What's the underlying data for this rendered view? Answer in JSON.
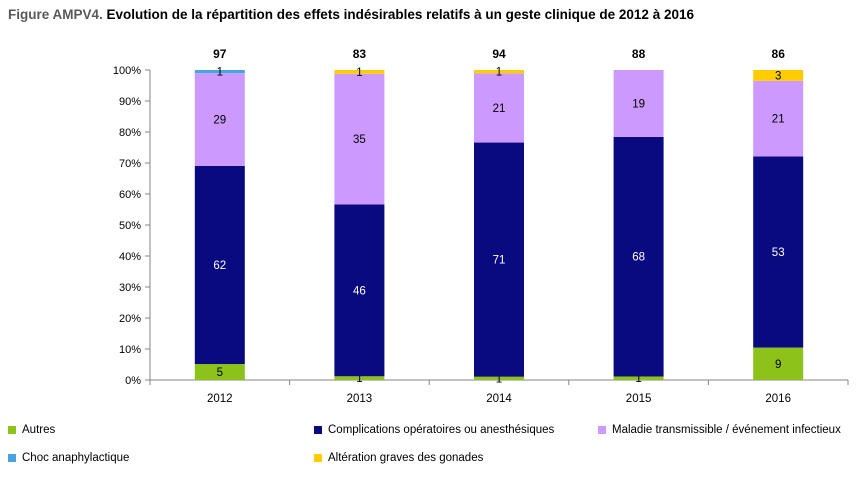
{
  "figure": {
    "prefix": "Figure AMPV4.",
    "title": "Evolution de la répartition des effets indésirables relatifs à un geste clinique de 2012 à 2016"
  },
  "chart_data": {
    "type": "bar",
    "stacked": true,
    "percent": true,
    "categories": [
      "2012",
      "2013",
      "2014",
      "2015",
      "2016"
    ],
    "totals": [
      "97",
      "83",
      "94",
      "88",
      "86"
    ],
    "y_ticks": [
      "0%",
      "10%",
      "20%",
      "30%",
      "40%",
      "50%",
      "60%",
      "70%",
      "80%",
      "90%",
      "100%"
    ],
    "ylim": [
      0,
      100
    ],
    "grid": false,
    "legend_position": "bottom",
    "series": [
      {
        "name": "Autres",
        "color": "#8cc21a",
        "values": [
          5,
          1,
          1,
          1,
          9
        ],
        "labels": [
          "5",
          "1",
          "1",
          "1",
          "9"
        ]
      },
      {
        "name": "Complications opératoires ou anesthésiques",
        "color": "#0a0a80",
        "values": [
          62,
          46,
          71,
          68,
          53
        ],
        "labels": [
          "62",
          "46",
          "71",
          "68",
          "53"
        ]
      },
      {
        "name": "Maladie transmissible / événement infectieux",
        "color": "#cc99ff",
        "values": [
          29,
          35,
          21,
          19,
          21
        ],
        "labels": [
          "29",
          "35",
          "21",
          "19",
          "21"
        ]
      },
      {
        "name": "Choc anaphylactique",
        "color": "#4aa3df",
        "values": [
          1,
          0,
          0,
          0,
          0
        ],
        "labels": [
          "1",
          "",
          "",
          "",
          ""
        ]
      },
      {
        "name": "Altération graves des gonades",
        "color": "#ffcc00",
        "values": [
          0,
          1,
          1,
          0,
          3
        ],
        "labels": [
          "",
          "1",
          "1",
          "",
          "3"
        ]
      }
    ]
  }
}
